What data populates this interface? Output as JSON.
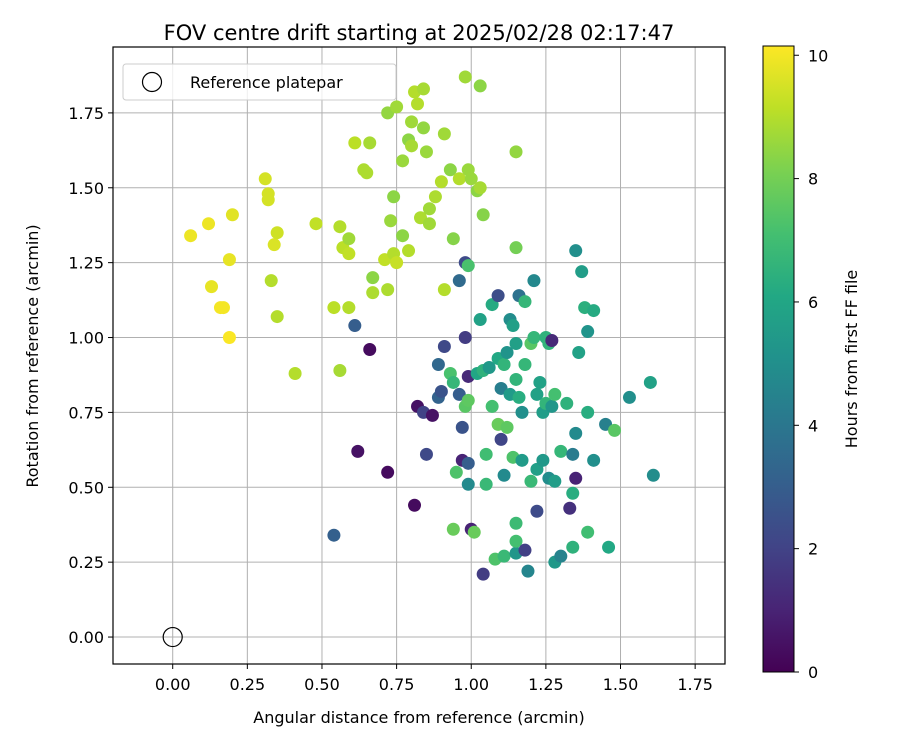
{
  "chart_data": {
    "type": "scatter",
    "title": "FOV centre drift starting at 2025/02/28 02:17:47",
    "xlabel": "Angular distance from reference (arcmin)",
    "ylabel": "Rotation from reference (arcmin)",
    "xlim": [
      -0.2,
      1.85
    ],
    "ylim": [
      -0.09,
      1.97
    ],
    "xticks": [
      "0.00",
      "0.25",
      "0.50",
      "0.75",
      "1.00",
      "1.25",
      "1.50",
      "1.75"
    ],
    "yticks": [
      "0.00",
      "0.25",
      "0.50",
      "0.75",
      "1.00",
      "1.25",
      "1.50",
      "1.75"
    ],
    "grid": true,
    "legend": {
      "placement": "top-left",
      "entries": [
        "Reference platepar"
      ]
    },
    "reference_point": {
      "x": 0.0,
      "y": 0.0
    },
    "colorbar": {
      "label": "Hours from first FF file",
      "range": [
        0,
        10.15
      ],
      "ticks": [
        "0",
        "2",
        "4",
        "6",
        "8",
        "10"
      ],
      "colormap": "viridis"
    },
    "points": [
      {
        "x": 0.06,
        "y": 1.34,
        "h": 9.9
      },
      {
        "x": 0.12,
        "y": 1.38,
        "h": 9.9
      },
      {
        "x": 0.13,
        "y": 1.17,
        "h": 9.8
      },
      {
        "x": 0.16,
        "y": 1.1,
        "h": 10.0
      },
      {
        "x": 0.17,
        "y": 1.1,
        "h": 10.0
      },
      {
        "x": 0.19,
        "y": 1.0,
        "h": 10.1
      },
      {
        "x": 0.19,
        "y": 1.26,
        "h": 9.8
      },
      {
        "x": 0.2,
        "y": 1.41,
        "h": 9.7
      },
      {
        "x": 0.31,
        "y": 1.53,
        "h": 9.5
      },
      {
        "x": 0.32,
        "y": 1.46,
        "h": 9.5
      },
      {
        "x": 0.32,
        "y": 1.48,
        "h": 9.5
      },
      {
        "x": 0.33,
        "y": 1.19,
        "h": 9.0
      },
      {
        "x": 0.34,
        "y": 1.31,
        "h": 9.6
      },
      {
        "x": 0.35,
        "y": 1.35,
        "h": 9.4
      },
      {
        "x": 0.35,
        "y": 1.07,
        "h": 9.0
      },
      {
        "x": 0.41,
        "y": 0.88,
        "h": 9.0
      },
      {
        "x": 0.48,
        "y": 1.38,
        "h": 9.2
      },
      {
        "x": 0.54,
        "y": 1.1,
        "h": 9.1
      },
      {
        "x": 0.56,
        "y": 0.89,
        "h": 8.8
      },
      {
        "x": 0.56,
        "y": 1.37,
        "h": 9.0
      },
      {
        "x": 0.57,
        "y": 1.3,
        "h": 9.1
      },
      {
        "x": 0.59,
        "y": 1.33,
        "h": 8.7
      },
      {
        "x": 0.59,
        "y": 1.28,
        "h": 9.2
      },
      {
        "x": 0.59,
        "y": 1.1,
        "h": 9.0
      },
      {
        "x": 0.61,
        "y": 1.65,
        "h": 9.1
      },
      {
        "x": 0.64,
        "y": 1.56,
        "h": 8.9
      },
      {
        "x": 0.65,
        "y": 1.55,
        "h": 8.9
      },
      {
        "x": 0.66,
        "y": 1.65,
        "h": 8.8
      },
      {
        "x": 0.67,
        "y": 1.2,
        "h": 8.4
      },
      {
        "x": 0.67,
        "y": 1.15,
        "h": 8.9
      },
      {
        "x": 0.71,
        "y": 1.26,
        "h": 9.2
      },
      {
        "x": 0.72,
        "y": 1.75,
        "h": 8.5
      },
      {
        "x": 0.72,
        "y": 1.16,
        "h": 8.9
      },
      {
        "x": 0.73,
        "y": 1.39,
        "h": 8.6
      },
      {
        "x": 0.74,
        "y": 1.28,
        "h": 9.0
      },
      {
        "x": 0.74,
        "y": 1.47,
        "h": 8.4
      },
      {
        "x": 0.75,
        "y": 1.77,
        "h": 8.7
      },
      {
        "x": 0.75,
        "y": 1.25,
        "h": 9.3
      },
      {
        "x": 0.77,
        "y": 1.59,
        "h": 8.6
      },
      {
        "x": 0.77,
        "y": 1.34,
        "h": 8.4
      },
      {
        "x": 0.79,
        "y": 1.66,
        "h": 8.4
      },
      {
        "x": 0.79,
        "y": 1.29,
        "h": 9.0
      },
      {
        "x": 0.8,
        "y": 1.64,
        "h": 8.8
      },
      {
        "x": 0.8,
        "y": 1.72,
        "h": 8.7
      },
      {
        "x": 0.81,
        "y": 1.82,
        "h": 9.0
      },
      {
        "x": 0.82,
        "y": 1.78,
        "h": 9.0
      },
      {
        "x": 0.83,
        "y": 1.4,
        "h": 8.9
      },
      {
        "x": 0.84,
        "y": 1.83,
        "h": 8.8
      },
      {
        "x": 0.84,
        "y": 1.7,
        "h": 8.5
      },
      {
        "x": 0.85,
        "y": 1.62,
        "h": 8.6
      },
      {
        "x": 0.86,
        "y": 1.43,
        "h": 8.7
      },
      {
        "x": 0.86,
        "y": 1.38,
        "h": 8.7
      },
      {
        "x": 0.88,
        "y": 1.47,
        "h": 8.9
      },
      {
        "x": 0.9,
        "y": 1.52,
        "h": 9.0
      },
      {
        "x": 0.91,
        "y": 1.68,
        "h": 8.7
      },
      {
        "x": 0.91,
        "y": 1.16,
        "h": 9.0
      },
      {
        "x": 0.93,
        "y": 1.56,
        "h": 8.4
      },
      {
        "x": 0.94,
        "y": 1.33,
        "h": 8.3
      },
      {
        "x": 0.96,
        "y": 1.53,
        "h": 9.0
      },
      {
        "x": 0.98,
        "y": 1.87,
        "h": 8.7
      },
      {
        "x": 0.99,
        "y": 1.56,
        "h": 8.6
      },
      {
        "x": 1.0,
        "y": 1.53,
        "h": 8.6
      },
      {
        "x": 1.02,
        "y": 1.49,
        "h": 8.4
      },
      {
        "x": 1.03,
        "y": 1.5,
        "h": 8.8
      },
      {
        "x": 1.03,
        "y": 1.84,
        "h": 8.4
      },
      {
        "x": 1.04,
        "y": 1.41,
        "h": 8.3
      },
      {
        "x": 1.15,
        "y": 1.62,
        "h": 8.5
      },
      {
        "x": 1.15,
        "y": 1.3,
        "h": 8.0
      },
      {
        "x": 0.54,
        "y": 0.34,
        "h": 3.1
      },
      {
        "x": 0.61,
        "y": 1.04,
        "h": 3.0
      },
      {
        "x": 0.62,
        "y": 0.62,
        "h": 0.5
      },
      {
        "x": 0.66,
        "y": 0.96,
        "h": 0.3
      },
      {
        "x": 0.72,
        "y": 0.55,
        "h": 0.3
      },
      {
        "x": 0.81,
        "y": 0.44,
        "h": 0.3
      },
      {
        "x": 0.82,
        "y": 0.77,
        "h": 0.5
      },
      {
        "x": 0.84,
        "y": 0.75,
        "h": 2.0
      },
      {
        "x": 0.85,
        "y": 0.61,
        "h": 2.2
      },
      {
        "x": 0.87,
        "y": 0.74,
        "h": 0.5
      },
      {
        "x": 0.89,
        "y": 0.8,
        "h": 3.2
      },
      {
        "x": 0.89,
        "y": 0.91,
        "h": 3.4
      },
      {
        "x": 0.9,
        "y": 0.82,
        "h": 2.6
      },
      {
        "x": 0.91,
        "y": 0.97,
        "h": 2.2
      },
      {
        "x": 0.93,
        "y": 0.88,
        "h": 7.2
      },
      {
        "x": 0.94,
        "y": 0.85,
        "h": 6.7
      },
      {
        "x": 0.94,
        "y": 0.36,
        "h": 7.8
      },
      {
        "x": 0.95,
        "y": 0.55,
        "h": 7.3
      },
      {
        "x": 0.96,
        "y": 0.81,
        "h": 3.0
      },
      {
        "x": 0.96,
        "y": 1.19,
        "h": 3.5
      },
      {
        "x": 0.97,
        "y": 0.59,
        "h": 1.0
      },
      {
        "x": 0.97,
        "y": 0.7,
        "h": 2.6
      },
      {
        "x": 0.98,
        "y": 1.0,
        "h": 1.8
      },
      {
        "x": 0.98,
        "y": 0.77,
        "h": 7.5
      },
      {
        "x": 0.98,
        "y": 1.25,
        "h": 2.3
      },
      {
        "x": 0.99,
        "y": 0.58,
        "h": 3.0
      },
      {
        "x": 0.99,
        "y": 0.87,
        "h": 1.2
      },
      {
        "x": 0.99,
        "y": 0.51,
        "h": 4.8
      },
      {
        "x": 0.99,
        "y": 0.79,
        "h": 7.6
      },
      {
        "x": 0.99,
        "y": 1.24,
        "h": 7.2
      },
      {
        "x": 1.0,
        "y": 0.36,
        "h": 1.0
      },
      {
        "x": 1.01,
        "y": 0.35,
        "h": 7.8
      },
      {
        "x": 1.02,
        "y": 0.88,
        "h": 6.0
      },
      {
        "x": 1.03,
        "y": 1.06,
        "h": 5.8
      },
      {
        "x": 1.04,
        "y": 0.21,
        "h": 1.8
      },
      {
        "x": 1.04,
        "y": 0.89,
        "h": 6.5
      },
      {
        "x": 1.05,
        "y": 0.61,
        "h": 7.0
      },
      {
        "x": 1.05,
        "y": 0.51,
        "h": 6.8
      },
      {
        "x": 1.06,
        "y": 0.9,
        "h": 5.4
      },
      {
        "x": 1.07,
        "y": 0.77,
        "h": 7.1
      },
      {
        "x": 1.07,
        "y": 1.11,
        "h": 6.2
      },
      {
        "x": 1.08,
        "y": 0.26,
        "h": 7.3
      },
      {
        "x": 1.09,
        "y": 0.71,
        "h": 7.8
      },
      {
        "x": 1.09,
        "y": 0.93,
        "h": 6.1
      },
      {
        "x": 1.09,
        "y": 1.14,
        "h": 2.4
      },
      {
        "x": 1.1,
        "y": 0.66,
        "h": 2.1
      },
      {
        "x": 1.1,
        "y": 0.83,
        "h": 4.3
      },
      {
        "x": 1.11,
        "y": 0.91,
        "h": 6.6
      },
      {
        "x": 1.11,
        "y": 0.54,
        "h": 4.8
      },
      {
        "x": 1.11,
        "y": 0.27,
        "h": 6.8
      },
      {
        "x": 1.12,
        "y": 0.95,
        "h": 5.2
      },
      {
        "x": 1.12,
        "y": 0.7,
        "h": 7.6
      },
      {
        "x": 1.13,
        "y": 1.06,
        "h": 4.9
      },
      {
        "x": 1.13,
        "y": 0.81,
        "h": 5.5
      },
      {
        "x": 1.14,
        "y": 1.04,
        "h": 5.7
      },
      {
        "x": 1.14,
        "y": 0.6,
        "h": 7.3
      },
      {
        "x": 1.15,
        "y": 0.28,
        "h": 5.3
      },
      {
        "x": 1.15,
        "y": 0.98,
        "h": 5.7
      },
      {
        "x": 1.15,
        "y": 0.86,
        "h": 6.6
      },
      {
        "x": 1.15,
        "y": 0.38,
        "h": 6.9
      },
      {
        "x": 1.15,
        "y": 0.32,
        "h": 7.1
      },
      {
        "x": 1.16,
        "y": 0.8,
        "h": 6.3
      },
      {
        "x": 1.16,
        "y": 1.14,
        "h": 3.8
      },
      {
        "x": 1.17,
        "y": 0.59,
        "h": 5.5
      },
      {
        "x": 1.17,
        "y": 0.75,
        "h": 5.0
      },
      {
        "x": 1.18,
        "y": 0.29,
        "h": 1.9
      },
      {
        "x": 1.18,
        "y": 1.12,
        "h": 6.7
      },
      {
        "x": 1.18,
        "y": 0.91,
        "h": 6.7
      },
      {
        "x": 1.19,
        "y": 0.22,
        "h": 4.6
      },
      {
        "x": 1.2,
        "y": 0.52,
        "h": 6.8
      },
      {
        "x": 1.2,
        "y": 0.98,
        "h": 7.5
      },
      {
        "x": 1.21,
        "y": 1.0,
        "h": 6.7
      },
      {
        "x": 1.21,
        "y": 1.19,
        "h": 4.7
      },
      {
        "x": 1.22,
        "y": 0.56,
        "h": 5.7
      },
      {
        "x": 1.22,
        "y": 0.42,
        "h": 2.3
      },
      {
        "x": 1.22,
        "y": 0.81,
        "h": 5.8
      },
      {
        "x": 1.23,
        "y": 0.85,
        "h": 5.8
      },
      {
        "x": 1.24,
        "y": 0.75,
        "h": 5.6
      },
      {
        "x": 1.24,
        "y": 0.59,
        "h": 5.4
      },
      {
        "x": 1.25,
        "y": 1.0,
        "h": 6.5
      },
      {
        "x": 1.25,
        "y": 0.78,
        "h": 6.6
      },
      {
        "x": 1.26,
        "y": 0.53,
        "h": 4.9
      },
      {
        "x": 1.26,
        "y": 0.98,
        "h": 6.6
      },
      {
        "x": 1.27,
        "y": 0.99,
        "h": 1.2
      },
      {
        "x": 1.27,
        "y": 0.77,
        "h": 5.3
      },
      {
        "x": 1.28,
        "y": 0.25,
        "h": 5.4
      },
      {
        "x": 1.28,
        "y": 0.52,
        "h": 5.6
      },
      {
        "x": 1.28,
        "y": 0.81,
        "h": 7.1
      },
      {
        "x": 1.3,
        "y": 0.27,
        "h": 4.5
      },
      {
        "x": 1.3,
        "y": 0.62,
        "h": 6.7
      },
      {
        "x": 1.32,
        "y": 0.78,
        "h": 6.5
      },
      {
        "x": 1.33,
        "y": 0.43,
        "h": 1.4
      },
      {
        "x": 1.34,
        "y": 0.61,
        "h": 4.2
      },
      {
        "x": 1.34,
        "y": 0.3,
        "h": 6.5
      },
      {
        "x": 1.34,
        "y": 0.48,
        "h": 6.3
      },
      {
        "x": 1.35,
        "y": 0.53,
        "h": 1.0
      },
      {
        "x": 1.35,
        "y": 0.68,
        "h": 4.8
      },
      {
        "x": 1.35,
        "y": 1.29,
        "h": 5.0
      },
      {
        "x": 1.36,
        "y": 0.95,
        "h": 5.8
      },
      {
        "x": 1.37,
        "y": 1.22,
        "h": 5.6
      },
      {
        "x": 1.38,
        "y": 1.1,
        "h": 6.4
      },
      {
        "x": 1.39,
        "y": 1.02,
        "h": 5.2
      },
      {
        "x": 1.39,
        "y": 0.75,
        "h": 6.3
      },
      {
        "x": 1.39,
        "y": 0.35,
        "h": 7.0
      },
      {
        "x": 1.41,
        "y": 1.09,
        "h": 6.2
      },
      {
        "x": 1.41,
        "y": 0.59,
        "h": 5.0
      },
      {
        "x": 1.45,
        "y": 0.71,
        "h": 4.4
      },
      {
        "x": 1.46,
        "y": 0.3,
        "h": 6.1
      },
      {
        "x": 1.48,
        "y": 0.69,
        "h": 7.5
      },
      {
        "x": 1.53,
        "y": 0.8,
        "h": 5.0
      },
      {
        "x": 1.6,
        "y": 0.85,
        "h": 5.8
      },
      {
        "x": 1.61,
        "y": 0.54,
        "h": 4.9
      }
    ]
  }
}
